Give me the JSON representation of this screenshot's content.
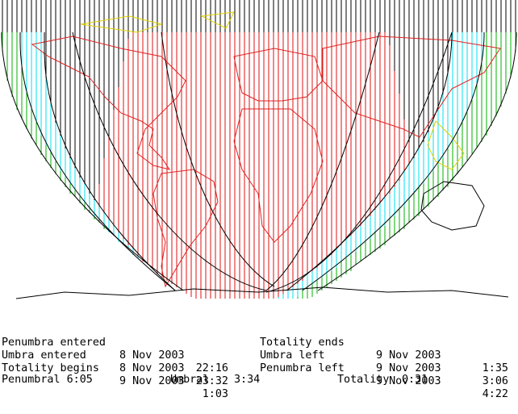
{
  "map": {
    "colors": {
      "meridian": "#000000",
      "zone_outer": "#00b000",
      "zone_umbral": "#00e0f0",
      "zone_total": "#e01010",
      "contour": "#000000",
      "coast_visible": "#000000",
      "coast_americas_europe": "#e02020",
      "coast_far_east": "#e0d000",
      "land_fill_magenta": "#d000d0",
      "oceania_coast": "#000000"
    }
  },
  "events": {
    "left": [
      {
        "label": "Penumbra entered",
        "date": "8 Nov 2003",
        "time": "22:16"
      },
      {
        "label": "Umbra entered",
        "date": "8 Nov 2003",
        "time": "23:32"
      },
      {
        "label": "Totality begins",
        "date": "9 Nov 2003",
        "time": "1:03"
      }
    ],
    "right": [
      {
        "label": "Totality ends",
        "date": "9 Nov 2003",
        "time": "1:35"
      },
      {
        "label": "Umbra left",
        "date": "9 Nov 2003",
        "time": "3:06"
      },
      {
        "label": "Penumbra left",
        "date": "9 Nov 2003",
        "time": "4:22"
      }
    ]
  },
  "summary": {
    "penumbral": "Penumbral 6:05",
    "umbral_label": "Umbral",
    "umbral_value": "3:34",
    "totality_label": "Totality",
    "totality_value": "0:31"
  }
}
